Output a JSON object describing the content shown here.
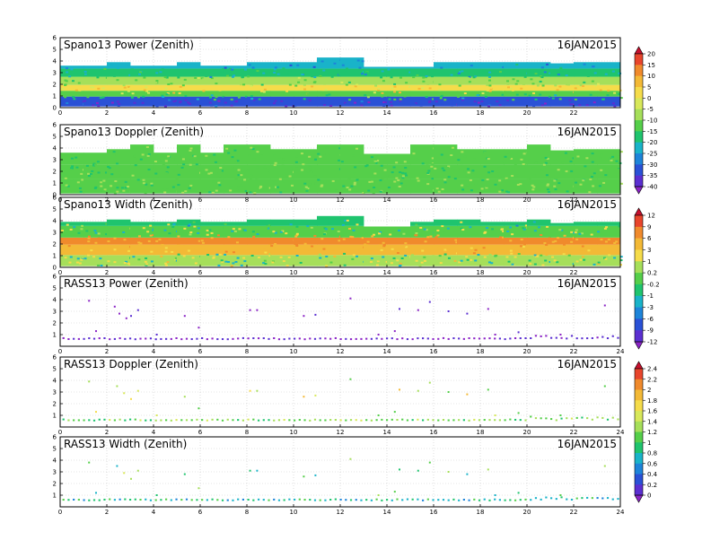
{
  "date_label": "16JAN2015",
  "chart_data": [
    {
      "type": "heatmap",
      "title": "Spano13 Power (Zenith)",
      "date": "16JAN2015",
      "xlabel": "",
      "ylabel": "",
      "xlim": [
        0,
        24
      ],
      "ylim": [
        0,
        6
      ],
      "x_ticks": [
        "0",
        "2",
        "4",
        "6",
        "8",
        "10",
        "12",
        "14",
        "16",
        "18",
        "20",
        "22"
      ],
      "y_ticks": [
        "0",
        "1",
        "2",
        "3",
        "4",
        "5",
        "6"
      ],
      "grid": true,
      "colorbar": "power",
      "data_top_km": [
        3.6,
        3.6,
        3.9,
        3.6,
        3.6,
        3.9,
        3.6,
        3.6,
        3.9,
        3.9,
        3.9,
        4.3,
        4.3,
        3.5,
        3.5,
        3.5,
        3.9,
        3.9,
        3.9,
        3.9,
        3.9,
        3.8,
        3.9,
        3.9
      ],
      "layers": [
        {
          "name": "",
          "height_km": 0.6,
          "value": -35
        },
        {
          "name": "",
          "height_km": 1.1,
          "value": -15
        },
        {
          "name": "",
          "height_km": 1.6,
          "value": 3
        },
        {
          "name": "",
          "height_km": 2.3,
          "value": -10
        },
        {
          "name": "",
          "height_km": 3.0,
          "value": -20
        },
        {
          "name": "",
          "height_km": 3.8,
          "value": -25
        }
      ]
    },
    {
      "type": "heatmap",
      "title": "Spano13 Doppler (Zenith)",
      "date": "16JAN2015",
      "xlabel": "",
      "ylabel": "",
      "xlim": [
        0,
        24
      ],
      "ylim": [
        0,
        6
      ],
      "x_ticks": [
        "0",
        "2",
        "4",
        "6",
        "8",
        "10",
        "12",
        "14",
        "16",
        "18",
        "20",
        "22"
      ],
      "y_ticks": [
        "0",
        "1",
        "2",
        "3",
        "4",
        "5",
        "6"
      ],
      "grid": true,
      "colorbar": "power",
      "data_top_km": [
        3.6,
        3.6,
        3.9,
        4.3,
        3.6,
        4.3,
        3.6,
        4.3,
        4.3,
        3.9,
        3.9,
        4.3,
        4.3,
        3.5,
        3.5,
        4.3,
        4.3,
        3.9,
        3.9,
        3.9,
        4.3,
        3.8,
        3.9,
        3.9
      ],
      "layers": [
        {
          "name": "",
          "height_km": 1.0,
          "value": -12
        },
        {
          "name": "",
          "height_km": 2.2,
          "value": -14
        },
        {
          "name": "",
          "height_km": 3.5,
          "value": -12
        }
      ]
    },
    {
      "type": "heatmap",
      "title": "Spano13 Width (Zenith)",
      "date": "16JAN2015",
      "xlabel": "",
      "ylabel": "",
      "xlim": [
        0,
        24
      ],
      "ylim": [
        0,
        6
      ],
      "x_ticks": [
        "0",
        "2",
        "4",
        "6",
        "8",
        "10",
        "12",
        "14",
        "16",
        "18",
        "20",
        "22"
      ],
      "y_ticks": [
        "0",
        "1",
        "2",
        "3",
        "4",
        "5",
        "6"
      ],
      "grid": true,
      "colorbar": "width",
      "data_top_km": [
        3.9,
        3.9,
        4.1,
        3.9,
        3.9,
        4.1,
        3.9,
        3.9,
        4.1,
        4.1,
        4.1,
        4.4,
        4.4,
        3.5,
        3.5,
        3.9,
        4.1,
        4.1,
        3.9,
        3.9,
        4.1,
        3.8,
        3.9,
        3.9
      ],
      "layers": [
        {
          "name": "",
          "height_km": 0.7,
          "value": 0.5
        },
        {
          "name": "",
          "height_km": 1.6,
          "value": 4
        },
        {
          "name": "",
          "height_km": 2.2,
          "value": 6
        },
        {
          "name": "",
          "height_km": 3.2,
          "value": 0.1
        },
        {
          "name": "",
          "height_km": 3.9,
          "value": -0.5
        }
      ]
    },
    {
      "type": "scatter",
      "title": "RASS13 Power (Zenith)",
      "date": "16JAN2015",
      "xlabel": "",
      "ylabel": "",
      "xlim": [
        0,
        24
      ],
      "ylim": [
        0,
        6
      ],
      "x_ticks": [
        "0",
        "2",
        "4",
        "6",
        "8",
        "10",
        "12",
        "14",
        "16",
        "18",
        "20",
        "22",
        "24"
      ],
      "y_ticks": [
        "1",
        "2",
        "3",
        "4",
        "5",
        "6"
      ],
      "grid": true,
      "colorbar": "width",
      "baseline_km": 0.65,
      "baseline_value": -12,
      "points": [
        [
          1.2,
          3.9
        ],
        [
          1.5,
          1.3
        ],
        [
          2.3,
          3.4
        ],
        [
          2.5,
          2.8
        ],
        [
          2.8,
          2.4
        ],
        [
          3.0,
          2.6
        ],
        [
          3.3,
          3.1
        ],
        [
          4.1,
          1.0
        ],
        [
          5.3,
          2.6
        ],
        [
          5.9,
          1.6
        ],
        [
          8.1,
          3.1
        ],
        [
          8.4,
          3.1
        ],
        [
          10.4,
          2.6
        ],
        [
          10.9,
          2.7
        ],
        [
          12.4,
          4.1
        ],
        [
          13.6,
          1.0
        ],
        [
          14.3,
          1.3
        ],
        [
          14.5,
          3.2
        ],
        [
          15.3,
          3.1
        ],
        [
          15.8,
          3.8
        ],
        [
          16.6,
          3.0
        ],
        [
          17.4,
          2.8
        ],
        [
          18.3,
          3.2
        ],
        [
          18.6,
          1.0
        ],
        [
          19.6,
          1.2
        ],
        [
          21.4,
          1.0
        ],
        [
          23.3,
          3.5
        ]
      ],
      "point_value": -12
    },
    {
      "type": "scatter",
      "title": "RASS13 Doppler (Zenith)",
      "date": "16JAN2015",
      "xlabel": "",
      "ylabel": "",
      "xlim": [
        0,
        24
      ],
      "ylim": [
        0,
        6
      ],
      "x_ticks": [
        "0",
        "2",
        "4",
        "6",
        "8",
        "10",
        "12",
        "14",
        "16",
        "18",
        "20",
        "22",
        "24"
      ],
      "y_ticks": [
        "1",
        "2",
        "3",
        "4",
        "5",
        "6"
      ],
      "grid": true,
      "colorbar": "doppler",
      "baseline_km": 0.6,
      "baseline_value": 1.2,
      "points": [
        [
          1.2,
          3.9
        ],
        [
          1.5,
          1.3
        ],
        [
          2.4,
          3.5
        ],
        [
          2.7,
          2.9
        ],
        [
          3.0,
          2.4
        ],
        [
          3.3,
          3.1
        ],
        [
          4.1,
          1.0
        ],
        [
          5.3,
          2.6
        ],
        [
          5.9,
          1.6
        ],
        [
          8.1,
          3.1
        ],
        [
          8.4,
          3.1
        ],
        [
          10.4,
          2.6
        ],
        [
          10.9,
          2.7
        ],
        [
          12.4,
          4.1
        ],
        [
          13.6,
          1.0
        ],
        [
          14.3,
          1.3
        ],
        [
          14.5,
          3.2
        ],
        [
          15.3,
          3.1
        ],
        [
          15.8,
          3.8
        ],
        [
          16.6,
          3.0
        ],
        [
          17.4,
          2.8
        ],
        [
          18.3,
          3.2
        ],
        [
          18.6,
          1.0
        ],
        [
          19.6,
          1.2
        ],
        [
          21.4,
          1.0
        ],
        [
          23.3,
          3.5
        ]
      ],
      "point_value": 1.5
    },
    {
      "type": "scatter",
      "title": "RASS13 Width (Zenith)",
      "date": "16JAN2015",
      "xlabel": "",
      "ylabel": "",
      "xlim": [
        0,
        24
      ],
      "ylim": [
        0,
        6
      ],
      "x_ticks": [
        "0",
        "2",
        "4",
        "6",
        "8",
        "10",
        "12",
        "14",
        "16",
        "18",
        "20",
        "22",
        "24"
      ],
      "y_ticks": [
        "1",
        "2",
        "3",
        "4",
        "5",
        "6"
      ],
      "grid": true,
      "colorbar": "doppler",
      "baseline_km": 0.6,
      "baseline_value": 0.8,
      "points": [
        [
          1.2,
          3.8
        ],
        [
          1.5,
          1.2
        ],
        [
          2.4,
          3.5
        ],
        [
          2.7,
          2.9
        ],
        [
          3.0,
          2.4
        ],
        [
          3.3,
          3.1
        ],
        [
          4.1,
          1.0
        ],
        [
          5.3,
          2.8
        ],
        [
          5.9,
          1.6
        ],
        [
          8.1,
          3.1
        ],
        [
          8.4,
          3.1
        ],
        [
          10.4,
          2.6
        ],
        [
          10.9,
          2.7
        ],
        [
          12.4,
          4.1
        ],
        [
          13.6,
          1.0
        ],
        [
          14.3,
          1.3
        ],
        [
          14.5,
          3.2
        ],
        [
          15.3,
          3.1
        ],
        [
          15.8,
          3.8
        ],
        [
          16.6,
          3.0
        ],
        [
          17.4,
          2.8
        ],
        [
          18.3,
          3.2
        ],
        [
          18.6,
          1.0
        ],
        [
          19.6,
          1.2
        ],
        [
          21.4,
          1.0
        ],
        [
          23.3,
          3.5
        ]
      ],
      "point_value": 1.0
    }
  ],
  "colorbars": {
    "power": {
      "labels": [
        "20",
        "15",
        "10",
        "5",
        "0",
        "-5",
        "-10",
        "-15",
        "-20",
        "-25",
        "-30",
        "-35",
        "-40"
      ],
      "values": [
        20,
        15,
        10,
        5,
        0,
        -5,
        -10,
        -15,
        -20,
        -25,
        -30,
        -35,
        -40
      ],
      "colors": [
        "#c8102e",
        "#e8452c",
        "#f08a2c",
        "#f3b936",
        "#f5dc4a",
        "#d8e85a",
        "#a6df5a",
        "#55cf4a",
        "#1fc46e",
        "#19b3c9",
        "#1d84d9",
        "#2a51d6",
        "#5b2fd1",
        "#8b24c6"
      ]
    },
    "width": {
      "labels": [
        "12",
        "9",
        "6",
        "3",
        "1",
        "0.2",
        "-0.2",
        "-1",
        "-3",
        "-6",
        "-9",
        "-12"
      ],
      "values": [
        12,
        9,
        6,
        3,
        1,
        0.2,
        -0.2,
        -1,
        -3,
        -6,
        -9,
        -12
      ],
      "colors": [
        "#c8102e",
        "#e8452c",
        "#f08a2c",
        "#f3b936",
        "#f5dc4a",
        "#a6df5a",
        "#55cf4a",
        "#1fc46e",
        "#19b3c9",
        "#1d84d9",
        "#2a51d6",
        "#5b2fd1",
        "#8b24c6"
      ]
    },
    "doppler": {
      "labels": [
        "2.4",
        "2.2",
        "2",
        "1.8",
        "1.6",
        "1.4",
        "1.2",
        "1",
        "0.8",
        "0.6",
        "0.4",
        "0.2",
        "0"
      ],
      "values": [
        2.4,
        2.2,
        2,
        1.8,
        1.6,
        1.4,
        1.2,
        1,
        0.8,
        0.6,
        0.4,
        0.2,
        0
      ],
      "colors": [
        "#c8102e",
        "#e8452c",
        "#f08a2c",
        "#f3b936",
        "#f5dc4a",
        "#d8e85a",
        "#a6df5a",
        "#55cf4a",
        "#1fc46e",
        "#19b3c9",
        "#1d84d9",
        "#2a51d6",
        "#5b2fd1",
        "#8b24c6"
      ]
    }
  }
}
